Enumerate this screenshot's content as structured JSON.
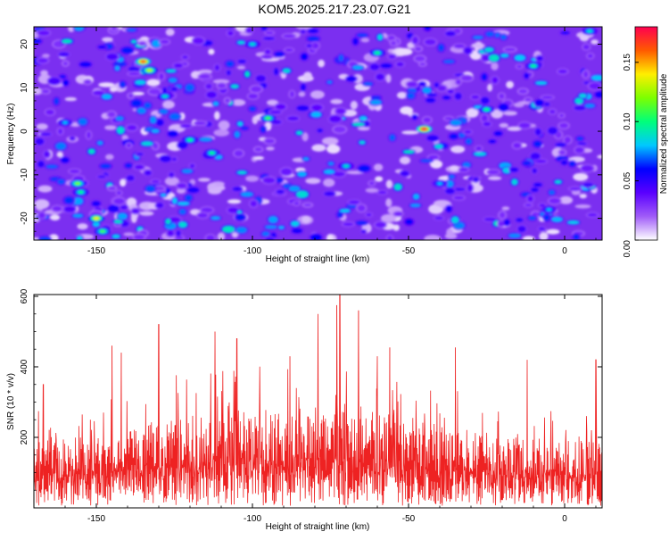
{
  "title": "KOM5.2025.217.23.07.G21",
  "colors": {
    "background": "#ffffff",
    "snr_line": "#ee2222",
    "spectrogram_base": "#7b2ff0",
    "colormap": [
      "#ffffff",
      "#a05cf8",
      "#5a00ff",
      "#0000ff",
      "#00c8ff",
      "#00ff7a",
      "#7dff00",
      "#ffee00",
      "#ff5a00",
      "#ff0050"
    ]
  },
  "chart_data": [
    {
      "type": "heatmap",
      "title": "KOM5.2025.217.23.07.G21",
      "xlabel": "Height of straight line (km)",
      "ylabel": "Frequency (Hz)",
      "xlim": [
        -170,
        12
      ],
      "ylim": [
        -25,
        24
      ],
      "x_ticks": [
        -150,
        -100,
        -50,
        0
      ],
      "y_ticks": [
        -20,
        -10,
        0,
        10,
        20
      ],
      "colorbar": {
        "label": "Normalized spectral amplitude",
        "range": [
          0.0,
          0.18
        ],
        "ticks": [
          "0.00",
          "0.05",
          "0.10",
          "0.15"
        ],
        "tick_values": [
          0.0,
          0.05,
          0.1,
          0.15
        ]
      },
      "hotspots": [
        {
          "x": -135,
          "y": 16,
          "value": 0.17
        },
        {
          "x": -133,
          "y": 14,
          "value": 0.13
        },
        {
          "x": -45,
          "y": 0.5,
          "value": 0.18
        },
        {
          "x": -150,
          "y": -20,
          "value": 0.14
        },
        {
          "x": -156,
          "y": -12,
          "value": 0.12
        },
        {
          "x": -148,
          "y": -23,
          "value": 0.11
        },
        {
          "x": -155,
          "y": -14,
          "value": 0.1
        },
        {
          "x": 8,
          "y": 23,
          "value": 0.09
        },
        {
          "x": -120,
          "y": -2,
          "value": 0.1
        },
        {
          "x": -113,
          "y": -5,
          "value": 0.1
        },
        {
          "x": -95,
          "y": 3,
          "value": 0.11
        },
        {
          "x": -60,
          "y": 18,
          "value": 0.1
        },
        {
          "x": -25,
          "y": 5,
          "value": 0.1
        },
        {
          "x": -10,
          "y": 15,
          "value": 0.1
        },
        {
          "x": -128,
          "y": 8,
          "value": 0.09
        },
        {
          "x": -70,
          "y": -8,
          "value": 0.09
        },
        {
          "x": -40,
          "y": -12,
          "value": 0.08
        },
        {
          "x": -5,
          "y": -18,
          "value": 0.08
        },
        {
          "x": -100,
          "y": 20,
          "value": 0.09
        },
        {
          "x": -160,
          "y": 2,
          "value": 0.08
        }
      ]
    },
    {
      "type": "line",
      "xlabel": "Height of straight line (km)",
      "ylabel": "SNR (10 * v/v)",
      "xlim": [
        -170,
        12
      ],
      "ylim": [
        0,
        605
      ],
      "x_ticks": [
        -150,
        -100,
        -50,
        0
      ],
      "y_ticks": [
        200,
        400,
        600
      ],
      "series": [
        {
          "baseline": 120,
          "max": 605,
          "peaks": [
            {
              "x": -72,
              "y": 605
            },
            {
              "x": -73,
              "y": 575
            },
            {
              "x": -66,
              "y": 560
            },
            {
              "x": -79,
              "y": 550
            },
            {
              "x": -130,
              "y": 520
            },
            {
              "x": -112,
              "y": 500
            },
            {
              "x": -105,
              "y": 480
            },
            {
              "x": -145,
              "y": 460
            },
            {
              "x": -56,
              "y": 455
            },
            {
              "x": -35,
              "y": 455
            },
            {
              "x": -142,
              "y": 440
            },
            {
              "x": -88,
              "y": 430
            },
            {
              "x": -60,
              "y": 430
            },
            {
              "x": -12,
              "y": 420
            },
            {
              "x": 10,
              "y": 420
            },
            {
              "x": -167,
              "y": 350
            }
          ]
        }
      ]
    }
  ]
}
